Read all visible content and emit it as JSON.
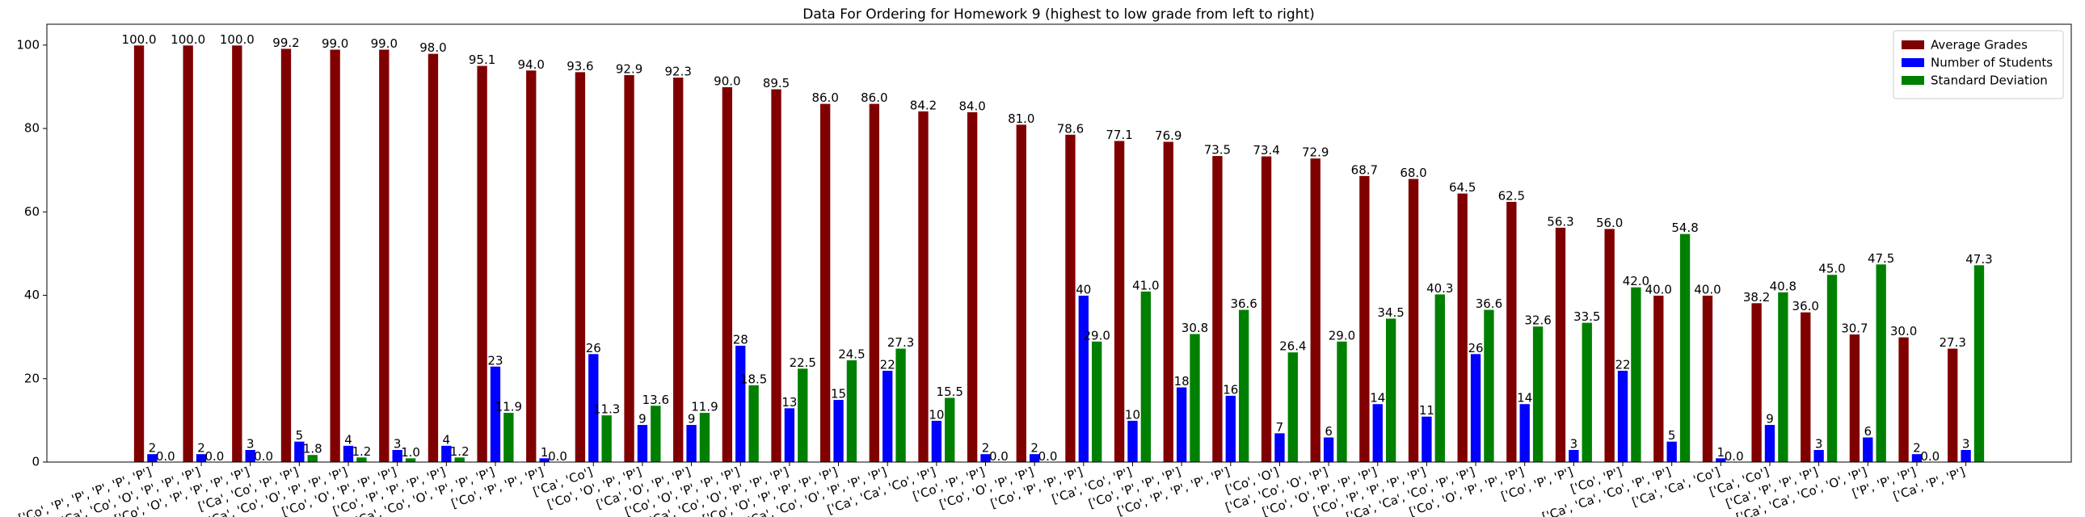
{
  "chart_data": {
    "type": "bar",
    "title": "Data For Ordering for Homework 9 (highest to low grade from left to right)",
    "categories": [
      "['Co', 'P', 'P', 'P', 'P', 'P']",
      "['Ca', 'Co', 'O', 'P', 'P', 'P']",
      "['Co', 'O', 'P', 'P', 'P', 'P']",
      "['Ca', 'Co', 'P', 'P']",
      "['Ca', 'Co', 'O', 'P', 'P', 'P']",
      "['Co', 'O', 'P', 'P', 'P']",
      "['Co', 'P', 'P', 'P', 'P']",
      "['Ca', 'Co', 'O', 'P', 'P', 'P']",
      "['Co', 'P', 'P', 'P']",
      "['Ca', 'Co']",
      "['Co', 'O', 'P', 'P']",
      "['Ca', 'O', 'P', 'P']",
      "['Co', 'O', 'P', 'P', 'P']",
      "['Ca', 'Co', 'O', 'P', 'P', 'P']",
      "['Co', 'O', 'P', 'P', 'P', 'P']",
      "['Ca', 'Co', 'O', 'P', 'P', 'P']",
      "['Ca', 'Ca', 'Co', 'P']",
      "['Co', 'P', 'P']",
      "['Co', 'O', 'P', 'P']",
      "['Co', 'P', 'P', 'P']",
      "['Ca', 'Co', 'P']",
      "['Co', 'P', 'P', 'P']",
      "['Co', 'P', 'P', 'P', 'P']",
      "['Co', 'O']",
      "['Ca', 'Co', 'O', 'P']",
      "['Co', 'O', 'P', 'P', 'P']",
      "['Co', 'P', 'P', 'P', 'P']",
      "['Ca', 'Ca', 'Co', 'P', 'P']",
      "['Co', 'O', 'P', 'P', 'P']",
      "['Co', 'P', 'P']",
      "['Co', 'P']",
      "['Ca', 'Ca', 'Co', 'P', 'P']",
      "['Ca', 'Ca', 'Co']",
      "['Ca', 'Co']",
      "['Ca', 'P', 'P', 'P']",
      "['Ca', 'Ca', 'Co', 'O', 'P']",
      "['P', 'P', 'P']",
      "['Ca', 'P', 'P']"
    ],
    "series": [
      {
        "name": "Average Grades",
        "color": "#800000",
        "values": [
          100,
          100,
          100,
          99.2,
          99,
          99,
          98,
          95.1,
          94,
          93.6,
          92.9,
          92.3,
          90,
          89.5,
          86,
          86,
          84.2,
          84,
          81,
          78.6,
          77.1,
          76.9,
          73.5,
          73.4,
          72.9,
          68.7,
          68,
          64.5,
          62.5,
          56.3,
          56,
          40,
          40,
          38.2,
          36,
          30.7,
          30,
          27.3
        ],
        "value_labels": [
          "100.0",
          "100.0",
          "100.0",
          "99.2",
          "99.0",
          "99.0",
          "98.0",
          "95.1",
          "94.0",
          "93.6",
          "92.9",
          "92.3",
          "90.0",
          "89.5",
          "86.0",
          "86.0",
          "84.2",
          "84.0",
          "81.0",
          "78.6",
          "77.1",
          "76.9",
          "73.5",
          "73.4",
          "72.9",
          "68.7",
          "68.0",
          "64.5",
          "62.5",
          "56.3",
          "56.0",
          "40.0",
          "40.0",
          "38.2",
          "36.0",
          "30.7",
          "30.0",
          "27.3"
        ]
      },
      {
        "name": "Number of Students",
        "color": "#0000ff",
        "values": [
          2,
          2,
          3,
          5,
          4,
          3,
          4,
          23,
          1,
          26,
          9,
          9,
          28,
          13,
          15,
          22,
          10,
          2,
          2,
          40,
          10,
          18,
          16,
          7,
          6,
          14,
          11,
          26,
          14,
          3,
          22,
          5,
          1,
          9,
          3,
          6,
          2,
          3
        ]
      },
      {
        "name": "Standard Deviation",
        "color": "#008000",
        "values": [
          0,
          0,
          0,
          1.8,
          1.2,
          1,
          1.2,
          11.9,
          0,
          11.3,
          13.6,
          11.9,
          18.5,
          22.5,
          24.5,
          27.3,
          15.5,
          0,
          0,
          29,
          41,
          30.8,
          36.6,
          26.4,
          29,
          34.5,
          40.3,
          36.6,
          32.6,
          33.5,
          42,
          54.8,
          0,
          40.8,
          45,
          47.5,
          0,
          47.3
        ],
        "value_labels": [
          "0.0",
          "0.0",
          "0.0",
          "1.8",
          "1.2",
          "1.0",
          "1.2",
          "11.9",
          "0.0",
          "11.3",
          "13.6",
          "11.9",
          "18.5",
          "22.5",
          "24.5",
          "27.3",
          "15.5",
          "0.0",
          "0.0",
          "29.0",
          "41.0",
          "30.8",
          "36.6",
          "26.4",
          "29.0",
          "34.5",
          "40.3",
          "36.6",
          "32.6",
          "33.5",
          "42.0",
          "54.8",
          "0.0",
          "40.8",
          "45.0",
          "47.5",
          "0.0",
          "47.3"
        ]
      }
    ],
    "ylim": [
      0,
      105
    ],
    "yticks": [
      0,
      20,
      40,
      60,
      80,
      100
    ],
    "legend": "upper right"
  }
}
